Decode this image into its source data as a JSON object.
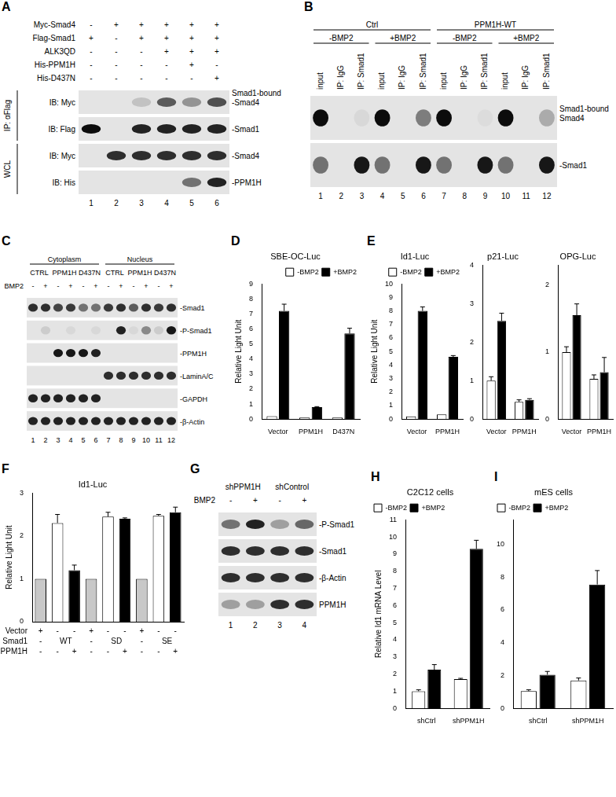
{
  "blots": [
    {
      "panel": "A",
      "lanes": [
        1,
        2,
        3,
        4,
        5,
        6
      ],
      "headers": [
        {
          "name": "Myc-Smad4",
          "cells": [
            "-",
            "+",
            "+",
            "+",
            "+",
            "+"
          ]
        },
        {
          "name": "Flag-Smad1",
          "cells": [
            "+",
            "-",
            "+",
            "+",
            "+",
            "+"
          ]
        },
        {
          "name": "ALK3QD",
          "cells": [
            "-",
            "-",
            "-",
            "+",
            "+",
            "+"
          ]
        },
        {
          "name": "His-PPM1H",
          "cells": [
            "-",
            "-",
            "-",
            "-",
            "+",
            "-"
          ]
        },
        {
          "name": "His-D437N",
          "cells": [
            "-",
            "-",
            "-",
            "-",
            "-",
            "+"
          ]
        }
      ],
      "rows": [
        {
          "left": "IB: Myc",
          "right": [
            "Smad1-bound",
            "-Smad4"
          ],
          "bands": [
            0,
            0,
            0.15,
            0.6,
            0.35,
            0.65
          ]
        },
        {
          "left": "IB: Flag",
          "right": [
            "-Smad1"
          ],
          "bands": [
            0.95,
            0,
            0.85,
            0.85,
            0.85,
            0.85
          ]
        },
        {
          "left": "IB: Myc",
          "right": [
            "-Smad4"
          ],
          "bands": [
            0,
            0.8,
            0.8,
            0.8,
            0.8,
            0.8
          ]
        },
        {
          "left": "IB: His",
          "right": [
            "-PPM1H"
          ],
          "bands": [
            0,
            0,
            0,
            0,
            0.5,
            0.85
          ]
        }
      ],
      "groups": [
        {
          "label": "IP: αFlag",
          "rows": [
            0,
            1
          ]
        },
        {
          "label": "WCL",
          "rows": [
            2,
            3
          ]
        }
      ]
    },
    {
      "panel": "B",
      "lanes": [
        1,
        2,
        3,
        4,
        5,
        6,
        7,
        8,
        9,
        10,
        11,
        12
      ],
      "headers": [
        {
          "cells": [
            {
              "label": "Ctrl",
              "span": 6
            },
            {
              "label": "PPM1H-WT",
              "span": 6
            }
          ]
        },
        {
          "cells": [
            {
              "label": "-BMP2",
              "span": 3
            },
            {
              "label": "+BMP2",
              "span": 3
            },
            {
              "label": "-BMP2",
              "span": 3
            },
            {
              "label": "+BMP2",
              "span": 3
            }
          ]
        },
        {
          "cells": [
            "input",
            "IP: IgG",
            "IP: Smad1",
            "input",
            "IP: IgG",
            "IP: Smad1",
            "input",
            "IP: IgG",
            "IP: Smad1",
            "input",
            "IP: IgG",
            "IP: Smad1"
          ]
        }
      ],
      "rows": [
        {
          "right": [
            "Smad1-bound",
            "Smad4"
          ],
          "bands": [
            0.95,
            0,
            0.05,
            0.95,
            0,
            0.45,
            0.95,
            0,
            0.03,
            0.95,
            0,
            0.25
          ]
        },
        {
          "right": [
            "-Smad1"
          ],
          "bands": [
            0.5,
            0,
            0.9,
            0.5,
            0,
            0.9,
            0.5,
            0,
            0.9,
            0.5,
            0,
            0.9
          ]
        }
      ]
    },
    {
      "panel": "C",
      "lanes": [
        1,
        2,
        3,
        4,
        5,
        6,
        7,
        8,
        9,
        10,
        11,
        12
      ],
      "headers": [
        {
          "cells": [
            {
              "label": "Cytoplasm",
              "span": 6
            },
            {
              "label": "Nucleus",
              "span": 6
            }
          ]
        },
        {
          "cells": [
            {
              "label": "CTRL",
              "span": 2
            },
            {
              "label": "PPM1H",
              "span": 2
            },
            {
              "label": "D437N",
              "span": 2
            },
            {
              "label": "CTRL",
              "span": 2
            },
            {
              "label": "PPM1H",
              "span": 2
            },
            {
              "label": "D437N",
              "span": 2
            }
          ]
        },
        {
          "name": "BMP2",
          "cells": [
            "-",
            "+",
            "-",
            "+",
            "-",
            "+",
            "-",
            "+",
            "-",
            "+",
            "-",
            "+"
          ]
        }
      ],
      "rows": [
        {
          "right": [
            "-Smad1"
          ],
          "bands": [
            0.8,
            0.8,
            0.7,
            0.75,
            0.5,
            0.5,
            0.75,
            0.8,
            0.6,
            0.8,
            0.75,
            0.8
          ]
        },
        {
          "right": [
            "-P-Smad1"
          ],
          "bands": [
            0,
            0.1,
            0,
            0.05,
            0,
            0.05,
            0,
            0.85,
            0.05,
            0.4,
            0.1,
            0.9
          ]
        },
        {
          "right": [
            "-PPM1H"
          ],
          "bands": [
            0,
            0,
            0.9,
            0.9,
            0.9,
            0.85,
            0,
            0,
            0,
            0,
            0,
            0
          ]
        },
        {
          "right": [
            "-LaminA/C"
          ],
          "bands": [
            0,
            0,
            0,
            0,
            0,
            0,
            0.8,
            0.8,
            0.8,
            0.8,
            0.8,
            0.8
          ]
        },
        {
          "right": [
            "-GAPDH"
          ],
          "bands": [
            0.85,
            0.85,
            0.85,
            0.85,
            0.85,
            0.85,
            0,
            0,
            0,
            0,
            0,
            0
          ]
        },
        {
          "right": [
            "-β-Actin"
          ],
          "bands": [
            0.85,
            0.85,
            0.85,
            0.85,
            0.85,
            0.85,
            0.85,
            0.85,
            0.85,
            0.85,
            0.85,
            0.85
          ]
        }
      ]
    },
    {
      "panel": "G",
      "lanes": [
        1,
        2,
        3,
        4
      ],
      "headers": [
        {
          "cells": [
            {
              "label": "shPPM1H",
              "span": 2
            },
            {
              "label": "shControl",
              "span": 2
            }
          ]
        },
        {
          "name": "BMP2",
          "cells": [
            "-",
            "+",
            "-",
            "+"
          ]
        }
      ],
      "rows": [
        {
          "right": [
            "-P-Smad1"
          ],
          "bands": [
            0.5,
            0.85,
            0.3,
            0.55
          ]
        },
        {
          "right": [
            "-Smad1"
          ],
          "bands": [
            0.8,
            0.8,
            0.8,
            0.8
          ]
        },
        {
          "right": [
            "-β-Actin"
          ],
          "bands": [
            0.8,
            0.8,
            0.8,
            0.8
          ]
        },
        {
          "right": [
            "PPM1H"
          ],
          "bands": [
            0.3,
            0.3,
            0.8,
            0.8
          ]
        }
      ]
    }
  ],
  "chart_data": [
    {
      "panel": "D",
      "type": "bar",
      "title": "SBE-OC-Luc",
      "y_label": "Relative Light Unit",
      "categories": [
        "Vector",
        "PPM1H",
        "D437N"
      ],
      "series": [
        {
          "name": "-BMP2",
          "color": "#ffffff",
          "values": [
            0.2,
            0.1,
            0.1
          ],
          "errors": [
            null,
            null,
            null
          ]
        },
        {
          "name": "+BMP2",
          "color": "#000000",
          "values": [
            7.2,
            0.8,
            5.7
          ],
          "errors": [
            0.45,
            0.03,
            0.35
          ]
        }
      ],
      "ylim": [
        0,
        9
      ],
      "yticks": [
        0,
        1,
        2,
        3,
        4,
        5,
        6,
        7,
        8,
        9
      ],
      "grid": false,
      "legend": "upper right"
    },
    {
      "panel": "E",
      "type": "bar",
      "title": "Id1-Luc",
      "y_label": "Relative Light Unit",
      "categories": [
        "Vector",
        "PPM1H"
      ],
      "series": [
        {
          "name": "-BMP2",
          "color": "#ffffff",
          "values": [
            0.2,
            0.35
          ],
          "errors": [
            null,
            null
          ]
        },
        {
          "name": "+BMP2",
          "color": "#000000",
          "values": [
            8.0,
            4.6
          ],
          "errors": [
            0.3,
            0.1
          ]
        }
      ],
      "ylim": [
        0,
        10
      ],
      "yticks": [
        0,
        1,
        2,
        3,
        4,
        5,
        6,
        7,
        8,
        9,
        10
      ],
      "grid": false,
      "legend": "upper right"
    },
    {
      "type": "bar",
      "title": "p21-Luc",
      "categories": [
        "Vector",
        "PPM1H"
      ],
      "series": [
        {
          "name": "-BMP2",
          "color": "#ffffff",
          "values": [
            1.0,
            0.45
          ],
          "errors": [
            0.1,
            0.05
          ]
        },
        {
          "name": "+BMP2",
          "color": "#000000",
          "values": [
            2.55,
            0.5
          ],
          "errors": [
            0.2,
            0.03
          ]
        }
      ],
      "ylim": [
        0,
        4
      ],
      "yticks": [
        0,
        1,
        2,
        3,
        4
      ],
      "grid": false
    },
    {
      "type": "bar",
      "title": "OPG-Luc",
      "categories": [
        "Vector",
        "PPM1H"
      ],
      "series": [
        {
          "name": "-BMP2",
          "color": "#ffffff",
          "values": [
            1.0,
            0.6
          ],
          "errors": [
            0.08,
            0.06
          ]
        },
        {
          "name": "+BMP2",
          "color": "#000000",
          "values": [
            1.55,
            0.7
          ],
          "errors": [
            0.17,
            0.22
          ]
        }
      ],
      "ylim": [
        0,
        2.3
      ],
      "yticks": [
        0,
        1,
        2
      ],
      "grid": false
    },
    {
      "panel": "F",
      "type": "bar",
      "title": "Id1-Luc",
      "y_label": "Relative Light Unit",
      "categories": [
        null,
        null,
        null,
        null,
        null,
        null,
        null,
        null,
        null
      ],
      "values": [
        1.0,
        2.3,
        1.2,
        1.0,
        2.45,
        2.4,
        1.0,
        2.47,
        2.55
      ],
      "errors": [
        null,
        0.2,
        0.12,
        null,
        0.1,
        0.02,
        null,
        0.03,
        0.12
      ],
      "colors": [
        "#c8c8c8",
        "#ffffff",
        "#000000",
        "#c8c8c8",
        "#ffffff",
        "#000000",
        "#c8c8c8",
        "#ffffff",
        "#000000"
      ],
      "conditions": [
        {
          "name": "Vector",
          "cells": [
            "+",
            "-",
            "-",
            "+",
            "-",
            "-",
            "+",
            "-",
            "-"
          ]
        },
        {
          "name": "Smad1",
          "cells": [
            "-",
            {
              "label": "WT",
              "span": 2
            },
            "-",
            {
              "label": "SD",
              "span": 2
            },
            "-",
            {
              "label": "SE",
              "span": 2
            }
          ]
        },
        {
          "name": "PPM1H",
          "cells": [
            "-",
            "-",
            "+",
            "-",
            "-",
            "+",
            "-",
            "-",
            "+"
          ]
        }
      ],
      "ylim": [
        0,
        3
      ],
      "yticks": [
        0,
        1,
        2,
        3
      ],
      "grid": false
    },
    {
      "panel": "H",
      "type": "bar",
      "title": "C2C12 cells",
      "y_label": "Relative Id1 mRNA Level",
      "categories": [
        "shCtrl",
        "shPPM1H"
      ],
      "series": [
        {
          "name": "-BMP2",
          "color": "#ffffff",
          "values": [
            1.0,
            1.7
          ],
          "errors": [
            0.08,
            0.05
          ]
        },
        {
          "name": "+BMP2",
          "color": "#000000",
          "values": [
            2.25,
            9.3
          ],
          "errors": [
            0.3,
            0.5
          ]
        }
      ],
      "ylim": [
        0,
        11
      ],
      "yticks": [
        0,
        1,
        2,
        3,
        4,
        5,
        6,
        7,
        8,
        9,
        10,
        11
      ],
      "grid": false,
      "legend": "upper left"
    },
    {
      "panel": "I",
      "type": "bar",
      "title": "mES cells",
      "categories": [
        "shCtrl",
        "shPPM1H"
      ],
      "series": [
        {
          "name": "-BMP2",
          "color": "#ffffff",
          "values": [
            1.05,
            1.7
          ],
          "errors": [
            0.08,
            0.15
          ]
        },
        {
          "name": "+BMP2",
          "color": "#000000",
          "values": [
            2.05,
            7.55
          ],
          "errors": [
            0.2,
            0.85
          ]
        }
      ],
      "ylim": [
        0,
        11.5
      ],
      "yticks": [
        0,
        2,
        4,
        6,
        8,
        10
      ],
      "grid": false,
      "legend": "upper left"
    }
  ]
}
